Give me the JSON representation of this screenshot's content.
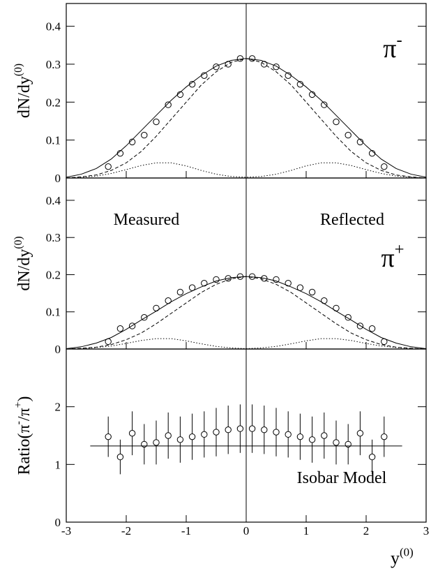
{
  "chart_data": [
    {
      "type": "line",
      "xlim": [
        -3,
        3
      ],
      "xticks": [
        -3,
        -2,
        -1,
        0,
        1,
        2,
        3
      ],
      "show_xtick_labels": false,
      "ylim": [
        0,
        0.46
      ],
      "yticks": [
        0,
        0.1,
        0.2,
        0.3,
        0.4
      ],
      "ylabel": [
        {
          "text": "dN/dy"
        },
        {
          "text": "(0)",
          "sup": true
        }
      ],
      "annotations": [
        {
          "parts": [
            {
              "text": "π"
            },
            {
              "text": "-",
              "sup": true
            }
          ]
        }
      ],
      "series": [
        {
          "style": "circle",
          "x": [
            -2.3,
            -2.1,
            -1.9,
            -1.7,
            -1.5,
            -1.3,
            -1.1,
            -0.9,
            -0.7,
            -0.5,
            -0.3,
            -0.1,
            0.1,
            0.3,
            0.5,
            0.7,
            0.9,
            1.1,
            1.3,
            1.5,
            1.7,
            1.9,
            2.1,
            2.3
          ],
          "values": [
            0.03,
            0.065,
            0.095,
            0.113,
            0.148,
            0.193,
            0.22,
            0.247,
            0.27,
            0.293,
            0.3,
            0.315,
            0.315,
            0.3,
            0.293,
            0.27,
            0.247,
            0.22,
            0.193,
            0.148,
            0.113,
            0.095,
            0.065,
            0.03
          ]
        },
        {
          "style": "solid",
          "x": [
            -3,
            -2.75,
            -2.5,
            -2.25,
            -2,
            -1.75,
            -1.5,
            -1.25,
            -1,
            -0.75,
            -0.5,
            -0.25,
            0,
            0.25,
            0.5,
            0.75,
            1,
            1.25,
            1.5,
            1.75,
            2,
            2.25,
            2.5,
            2.75,
            3
          ],
          "values": [
            0.002,
            0.01,
            0.025,
            0.05,
            0.085,
            0.125,
            0.165,
            0.205,
            0.24,
            0.27,
            0.295,
            0.31,
            0.315,
            0.31,
            0.295,
            0.27,
            0.24,
            0.205,
            0.165,
            0.125,
            0.085,
            0.05,
            0.025,
            0.01,
            0.002
          ]
        },
        {
          "style": "dashed",
          "x": [
            -3,
            -2.75,
            -2.5,
            -2.25,
            -2,
            -1.75,
            -1.5,
            -1.25,
            -1,
            -0.75,
            -0.5,
            -0.25,
            0,
            0.25,
            0.5,
            0.75,
            1,
            1.25,
            1.5,
            1.75,
            2,
            2.25,
            2.5,
            2.75,
            3
          ],
          "values": [
            0,
            0.003,
            0.008,
            0.02,
            0.04,
            0.07,
            0.11,
            0.155,
            0.2,
            0.245,
            0.28,
            0.305,
            0.315,
            0.305,
            0.28,
            0.245,
            0.2,
            0.155,
            0.11,
            0.07,
            0.04,
            0.02,
            0.008,
            0.003,
            0
          ]
        },
        {
          "style": "dotted",
          "x": [
            -3,
            -2.75,
            -2.5,
            -2.25,
            -2,
            -1.75,
            -1.5,
            -1.25,
            -1,
            -0.75,
            -0.5,
            -0.25,
            0,
            0.25,
            0.5,
            0.75,
            1,
            1.25,
            1.5,
            1.75,
            2,
            2.25,
            2.5,
            2.75,
            3
          ],
          "values": [
            0,
            0.002,
            0.005,
            0.012,
            0.022,
            0.033,
            0.04,
            0.04,
            0.032,
            0.02,
            0.01,
            0.004,
            0.002,
            0.004,
            0.01,
            0.02,
            0.032,
            0.04,
            0.04,
            0.033,
            0.022,
            0.012,
            0.005,
            0.002,
            0
          ]
        }
      ]
    },
    {
      "type": "line",
      "xlim": [
        -3,
        3
      ],
      "xticks": [
        -3,
        -2,
        -1,
        0,
        1,
        2,
        3
      ],
      "show_xtick_labels": false,
      "ylim": [
        0,
        0.46
      ],
      "yticks": [
        0,
        0.1,
        0.2,
        0.3,
        0.4
      ],
      "ylabel": [
        {
          "text": "dN/dy"
        },
        {
          "text": "(0)",
          "sup": true
        }
      ],
      "annotations": [
        {
          "parts": [
            {
              "text": "Measured"
            }
          ]
        },
        {
          "parts": [
            {
              "text": "Reflected"
            }
          ]
        },
        {
          "parts": [
            {
              "text": "π"
            },
            {
              "text": "+",
              "sup": true
            }
          ]
        }
      ],
      "series": [
        {
          "style": "circle",
          "x": [
            -2.3,
            -2.1,
            -1.9,
            -1.7,
            -1.5,
            -1.3,
            -1.1,
            -0.9,
            -0.7,
            -0.5,
            -0.3,
            -0.1,
            0.1,
            0.3,
            0.5,
            0.7,
            0.9,
            1.1,
            1.3,
            1.5,
            1.7,
            1.9,
            2.1,
            2.3
          ],
          "values": [
            0.02,
            0.055,
            0.062,
            0.085,
            0.11,
            0.13,
            0.153,
            0.165,
            0.177,
            0.187,
            0.19,
            0.195,
            0.195,
            0.19,
            0.187,
            0.177,
            0.165,
            0.153,
            0.13,
            0.11,
            0.085,
            0.062,
            0.055,
            0.02
          ]
        },
        {
          "style": "solid",
          "x": [
            -3,
            -2.75,
            -2.5,
            -2.25,
            -2,
            -1.75,
            -1.5,
            -1.25,
            -1,
            -0.75,
            -0.5,
            -0.25,
            0,
            0.25,
            0.5,
            0.75,
            1,
            1.25,
            1.5,
            1.75,
            2,
            2.25,
            2.5,
            2.75,
            3
          ],
          "values": [
            0.001,
            0.006,
            0.016,
            0.031,
            0.053,
            0.078,
            0.102,
            0.127,
            0.149,
            0.167,
            0.183,
            0.192,
            0.195,
            0.192,
            0.183,
            0.167,
            0.149,
            0.127,
            0.102,
            0.078,
            0.053,
            0.031,
            0.016,
            0.006,
            0.001
          ]
        },
        {
          "style": "dashed",
          "x": [
            -3,
            -2.75,
            -2.5,
            -2.25,
            -2,
            -1.75,
            -1.5,
            -1.25,
            -1,
            -0.75,
            -0.5,
            -0.25,
            0,
            0.25,
            0.5,
            0.75,
            1,
            1.25,
            1.5,
            1.75,
            2,
            2.25,
            2.5,
            2.75,
            3
          ],
          "values": [
            0,
            0.002,
            0.005,
            0.012,
            0.025,
            0.043,
            0.068,
            0.096,
            0.124,
            0.152,
            0.174,
            0.189,
            0.195,
            0.189,
            0.174,
            0.152,
            0.124,
            0.096,
            0.068,
            0.043,
            0.025,
            0.012,
            0.005,
            0.002,
            0
          ]
        },
        {
          "style": "dotted",
          "x": [
            -3,
            -2.75,
            -2.5,
            -2.25,
            -2,
            -1.75,
            -1.5,
            -1.25,
            -1,
            -0.75,
            -0.5,
            -0.25,
            0,
            0.25,
            0.5,
            0.75,
            1,
            1.25,
            1.5,
            1.75,
            2,
            2.25,
            2.5,
            2.75,
            3
          ],
          "values": [
            0,
            0.001,
            0.004,
            0.008,
            0.015,
            0.023,
            0.028,
            0.028,
            0.022,
            0.014,
            0.007,
            0.003,
            0.001,
            0.003,
            0.007,
            0.014,
            0.022,
            0.028,
            0.028,
            0.023,
            0.015,
            0.008,
            0.004,
            0.001,
            0
          ]
        }
      ]
    },
    {
      "type": "line",
      "xlim": [
        -3,
        3
      ],
      "xticks": [
        -3,
        -2,
        -1,
        0,
        1,
        2,
        3
      ],
      "show_xtick_labels": true,
      "ylim": [
        0,
        3
      ],
      "yticks": [
        0,
        1,
        2
      ],
      "ylabel": [
        {
          "text": "Ratio(π"
        },
        {
          "text": "-",
          "sup": true
        },
        {
          "text": "/π"
        },
        {
          "text": "+",
          "sup": true
        },
        {
          "text": ")"
        }
      ],
      "xlabel": [
        {
          "text": "y"
        },
        {
          "text": "(0)",
          "sup": true
        }
      ],
      "annotations": [
        {
          "parts": [
            {
              "text": "Isobar Model"
            }
          ]
        }
      ],
      "series": [
        {
          "style": "circle",
          "x": [
            -2.3,
            -2.1,
            -1.9,
            -1.7,
            -1.5,
            -1.3,
            -1.1,
            -0.9,
            -0.7,
            -0.5,
            -0.3,
            -0.1,
            0.1,
            0.3,
            0.5,
            0.7,
            0.9,
            1.1,
            1.3,
            1.5,
            1.7,
            1.9,
            2.1,
            2.3
          ],
          "values": [
            1.48,
            1.13,
            1.54,
            1.35,
            1.38,
            1.5,
            1.43,
            1.48,
            1.52,
            1.56,
            1.6,
            1.62,
            1.62,
            1.6,
            1.56,
            1.52,
            1.48,
            1.43,
            1.5,
            1.38,
            1.35,
            1.54,
            1.13,
            1.48
          ],
          "errors": [
            0.35,
            0.3,
            0.38,
            0.35,
            0.38,
            0.4,
            0.4,
            0.4,
            0.4,
            0.42,
            0.42,
            0.42,
            0.42,
            0.42,
            0.42,
            0.4,
            0.4,
            0.4,
            0.4,
            0.38,
            0.35,
            0.38,
            0.3,
            0.35
          ]
        },
        {
          "style": "solid",
          "x": [
            -2.6,
            2.6
          ],
          "values": [
            1.32,
            1.32
          ]
        }
      ]
    }
  ]
}
